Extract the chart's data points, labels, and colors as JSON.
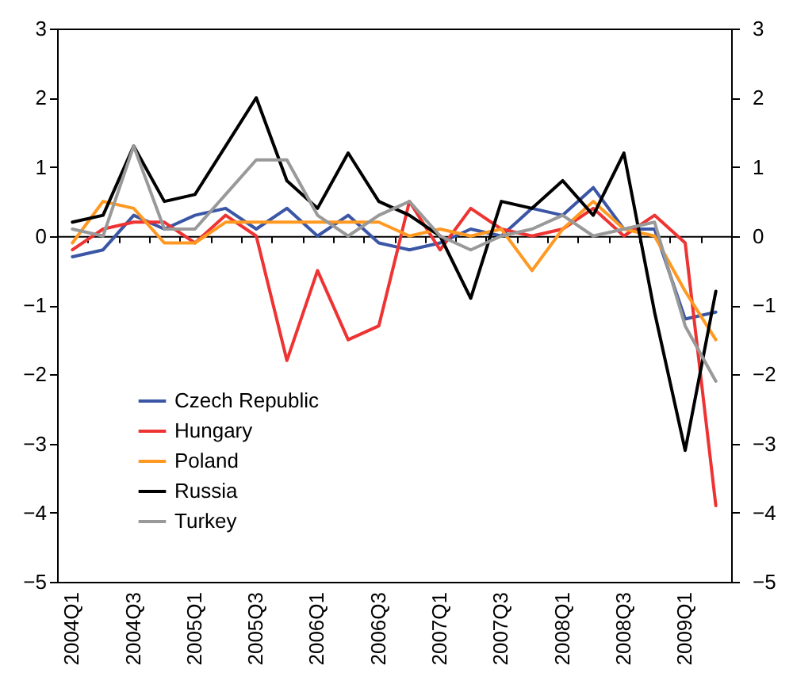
{
  "chart_data": {
    "type": "line",
    "categories": [
      "2004Q1",
      null,
      "2004Q3",
      null,
      "2005Q1",
      null,
      "2005Q3",
      null,
      "2006Q1",
      null,
      "2006Q3",
      null,
      "2007Q1",
      null,
      "2007Q3",
      null,
      "2008Q1",
      null,
      "2008Q3",
      null,
      "2009Q1",
      null
    ],
    "series": [
      {
        "name": "Czech Republic",
        "color": "#3a56a5",
        "values": [
          -0.3,
          -0.2,
          0.3,
          0.1,
          0.3,
          0.4,
          0.1,
          0.4,
          0,
          0.3,
          -0.1,
          -0.2,
          -0.1,
          0.1,
          0,
          0.4,
          0.3,
          0.7,
          0.1,
          0.1,
          -1.2,
          -1.1
        ]
      },
      {
        "name": "Hungary",
        "color": "#ee3333",
        "values": [
          -0.2,
          0.1,
          0.2,
          0.2,
          -0.1,
          0.3,
          0,
          -1.8,
          -0.5,
          -1.5,
          -1.3,
          0.5,
          -0.2,
          0.4,
          0.1,
          0,
          0.1,
          0.4,
          0,
          0.3,
          -0.1,
          -3.9
        ]
      },
      {
        "name": "Poland",
        "color": "#ff9922",
        "values": [
          -0.1,
          0.5,
          0.4,
          -0.1,
          -0.1,
          0.2,
          0.2,
          0.2,
          0.2,
          0.2,
          0.2,
          0,
          0.1,
          0,
          0.1,
          -0.5,
          0.1,
          0.5,
          0.1,
          0,
          -0.8,
          -1.5
        ]
      },
      {
        "name": "Russia",
        "color": "#000000",
        "values": [
          0.2,
          0.3,
          1.3,
          0.5,
          0.6,
          1.3,
          2.0,
          0.8,
          0.4,
          1.2,
          0.5,
          0.3,
          0,
          -0.9,
          0.5,
          0.4,
          0.8,
          0.3,
          1.2,
          -1.1,
          -3.1,
          -0.8
        ]
      },
      {
        "name": "Turkey",
        "color": "#999999",
        "values": [
          0.1,
          0,
          1.3,
          0.1,
          0.1,
          0.6,
          1.1,
          1.1,
          0.3,
          0,
          0.3,
          0.5,
          0,
          -0.2,
          0,
          0.1,
          0.3,
          0,
          0.1,
          0.2,
          -1.3,
          -2.1
        ]
      }
    ],
    "ylim": [
      -5,
      3
    ],
    "yticks": [
      -5,
      -4,
      -3,
      -2,
      -1,
      0,
      1,
      2,
      3
    ],
    "y2lim": [
      -5,
      3
    ],
    "y2ticks": [
      -5,
      -4,
      -3,
      -2,
      -1,
      0,
      1,
      2,
      3
    ],
    "legend": "bottom left",
    "marker": "none",
    "line_style": "solid"
  }
}
